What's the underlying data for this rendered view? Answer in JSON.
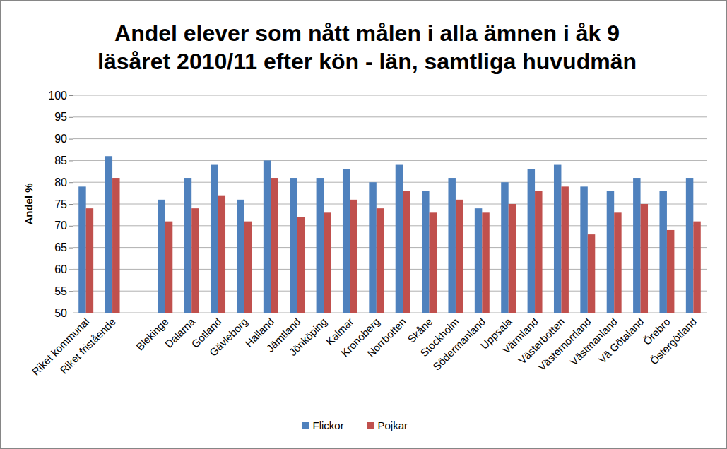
{
  "chart_data": {
    "type": "bar",
    "title": "Andel elever som nått målen i alla ämnen i åk 9\nläsåret 2010/11 efter kön - län, samtliga huvudmän",
    "y_label": "Andel %",
    "categories": [
      "Riket kommunal",
      "Riket fristående",
      null,
      "Blekinge",
      "Dalarna",
      "Gotland",
      "Gävleborg",
      "Halland",
      "Jämtland",
      "Jönköping",
      "Kalmar",
      "Kronoberg",
      "Norrbotten",
      "Skåne",
      "Stockholm",
      "Södermanland",
      "Uppsala",
      "Värmland",
      "Västerbotten",
      "Västernorrland",
      "Västmanland",
      "Vä Götaland",
      "Örebro",
      "Östergötland"
    ],
    "series": [
      {
        "name": "Flickor",
        "color": "#4f81bd",
        "values": [
          79,
          86,
          null,
          76,
          81,
          84,
          76,
          85,
          81,
          81,
          83,
          80,
          84,
          78,
          81,
          74,
          80,
          83,
          84,
          79,
          78,
          81,
          78,
          81
        ]
      },
      {
        "name": "Pojkar",
        "color": "#c0504d",
        "values": [
          74,
          81,
          null,
          71,
          74,
          77,
          71,
          81,
          72,
          73,
          76,
          74,
          78,
          73,
          76,
          73,
          75,
          78,
          79,
          68,
          73,
          75,
          69,
          71
        ]
      }
    ],
    "ylim": [
      50,
      100
    ],
    "yticks": [
      50,
      55,
      60,
      65,
      70,
      75,
      80,
      85,
      90,
      95,
      100
    ],
    "grid": true,
    "legend": "bottom"
  }
}
